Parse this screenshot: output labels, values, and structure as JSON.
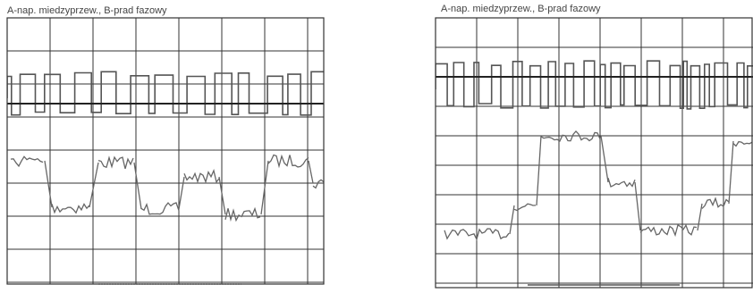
{
  "panels": [
    {
      "title": "A-nap. miedzyprzew., B-prad fazowy"
    },
    {
      "title": "A-nap. miedzyprzew., B-prad fazowy"
    }
  ]
}
